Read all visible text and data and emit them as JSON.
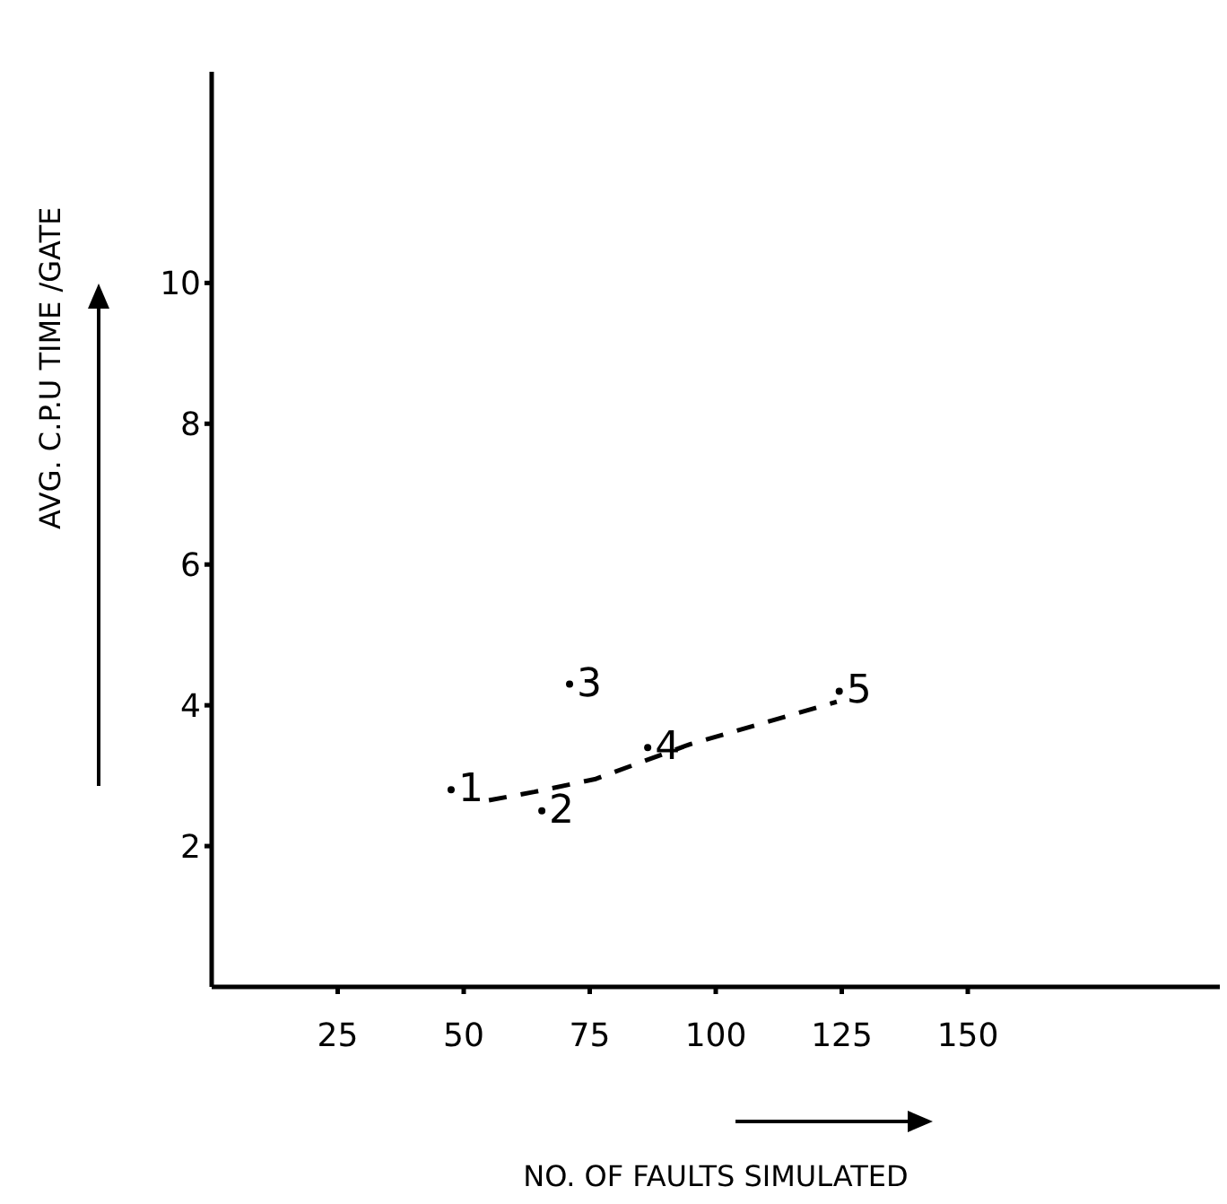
{
  "chart_data": {
    "type": "scatter",
    "xlabel": "NO. OF FAULTS SIMULATED",
    "ylabel": "AVG. C.P.U TIME /GATE",
    "xlim": [
      0,
      200
    ],
    "ylim": [
      0,
      13
    ],
    "xticks": [
      25,
      50,
      75,
      100,
      125,
      150
    ],
    "yticks": [
      2,
      4,
      6,
      8,
      10
    ],
    "annotations": [
      {
        "text": "1",
        "x": 47.5,
        "y": 2.8
      },
      {
        "text": "2",
        "x": 65.5,
        "y": 2.5
      },
      {
        "text": "3",
        "x": 71,
        "y": 4.3
      },
      {
        "text": "4",
        "x": 86.5,
        "y": 3.4
      },
      {
        "text": "5",
        "x": 124.5,
        "y": 4.2
      }
    ],
    "series": [
      {
        "color": "#000000",
        "marker": "circle",
        "x": [
          47.5,
          65.5,
          71,
          86.5,
          124.5
        ],
        "values": [
          2.8,
          2.5,
          4.3,
          3.4,
          4.2
        ]
      },
      {
        "type": "line",
        "color": "#000000",
        "line_style": "dashed",
        "marker": "none",
        "x": [
          55,
          64,
          76,
          95,
          124
        ],
        "values": [
          2.65,
          2.77,
          2.95,
          3.45,
          4.05
        ]
      }
    ]
  }
}
